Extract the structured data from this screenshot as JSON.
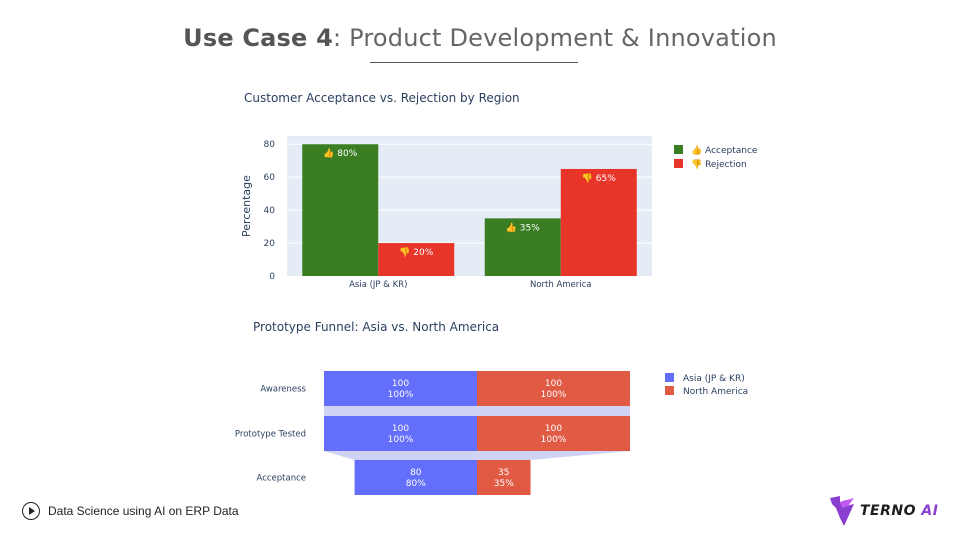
{
  "slide": {
    "title_bold": "Use Case 4",
    "title_rest": ": Product Development & Innovation"
  },
  "footer": {
    "text": "Data Science using AI on ERP Data"
  },
  "logo": {
    "text_main": "TERNO",
    "text_ai": " AI"
  },
  "colors": {
    "acceptance": "#3a7d22",
    "rejection": "#e8352a",
    "asia": "#636efa",
    "north_america": "#e05a44",
    "plot_bg": "#e5ecf6",
    "connector": "#c8cbf3"
  },
  "chart_data": [
    {
      "type": "bar",
      "title": "Customer Acceptance vs. Rejection by Region",
      "categories": [
        "Asia (JP & KR)",
        "North America"
      ],
      "series": [
        {
          "name": "👍 Acceptance",
          "values": [
            80,
            35
          ],
          "labels": [
            "👍 80%",
            "👍 35%"
          ]
        },
        {
          "name": "👎 Rejection",
          "values": [
            20,
            65
          ],
          "labels": [
            "👎 20%",
            "👎 65%"
          ]
        }
      ],
      "xlabel": "",
      "ylabel": "Percentage",
      "ylim": [
        0,
        85
      ],
      "yticks": [
        0,
        20,
        40,
        60,
        80
      ],
      "grid": true,
      "legend": "top-right"
    },
    {
      "type": "funnel",
      "title": "Prototype Funnel: Asia vs. North America",
      "stages": [
        "Awareness",
        "Prototype Tested",
        "Acceptance"
      ],
      "series": [
        {
          "name": "Asia (JP & KR)",
          "values": [
            100,
            100,
            80
          ],
          "percents": [
            "100%",
            "100%",
            "80%"
          ]
        },
        {
          "name": "North America",
          "values": [
            100,
            100,
            35
          ],
          "percents": [
            "100%",
            "100%",
            "35%"
          ]
        }
      ],
      "legend": "top-right"
    }
  ]
}
